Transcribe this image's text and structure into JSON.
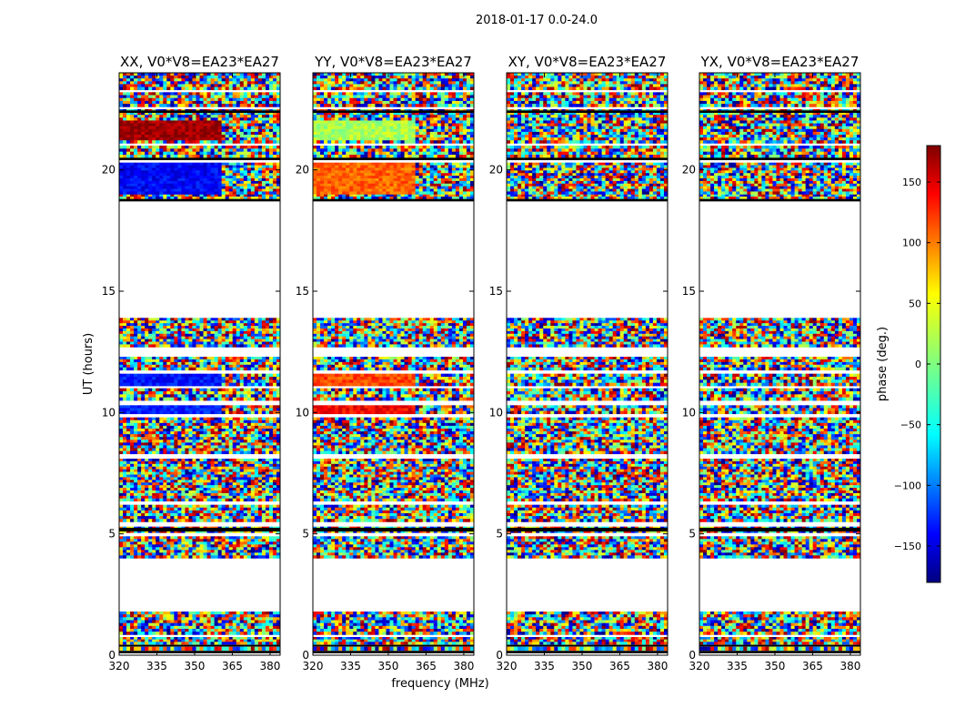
{
  "figure_title": "2018-01-17 0.0-24.0",
  "colors": {
    "background": "#ffffff",
    "frame": "#000000",
    "colormap": [
      "#00007f",
      "#0000ff",
      "#007fff",
      "#00ffff",
      "#7fff7f",
      "#ffff00",
      "#ff7f00",
      "#ff0000",
      "#7f0000"
    ]
  },
  "chart_data": [
    {
      "type": "heatmap",
      "title": "XX, V0*V8=EA23*EA27",
      "xlabel": "",
      "ylabel": "UT (hours)",
      "xlim": [
        320,
        384
      ],
      "ylim": [
        0,
        24
      ],
      "xticks": [
        320,
        335,
        350,
        365,
        380
      ],
      "yticks": [
        0,
        5,
        10,
        15,
        20
      ],
      "coherent_segments": [
        {
          "t0": 19.0,
          "t1": 20.3,
          "f0": 320,
          "f1": 361,
          "phase": -135
        },
        {
          "t0": 21.6,
          "t1": 22.4,
          "f0": 320,
          "f1": 360,
          "phase": 170
        },
        {
          "t0": 11.1,
          "t1": 11.6,
          "f0": 320,
          "f1": 361,
          "phase": -130
        },
        {
          "t0": 9.95,
          "t1": 10.3,
          "f0": 320,
          "f1": 361,
          "phase": -125
        }
      ]
    },
    {
      "type": "heatmap",
      "title": "YY, V0*V8=EA23*EA27",
      "xlabel": "",
      "ylabel": "",
      "xlim": [
        320,
        384
      ],
      "ylim": [
        0,
        24
      ],
      "xticks": [
        320,
        335,
        350,
        365,
        380
      ],
      "yticks": [
        0,
        5,
        10,
        15,
        20
      ],
      "coherent_segments": [
        {
          "t0": 19.0,
          "t1": 20.3,
          "f0": 320,
          "f1": 361,
          "phase": 100
        },
        {
          "t0": 21.6,
          "t1": 22.4,
          "f0": 320,
          "f1": 360,
          "phase": 15
        },
        {
          "t0": 11.1,
          "t1": 11.6,
          "f0": 320,
          "f1": 361,
          "phase": 110
        },
        {
          "t0": 9.95,
          "t1": 10.3,
          "f0": 320,
          "f1": 361,
          "phase": 135
        }
      ]
    },
    {
      "type": "heatmap",
      "title": "XY, V0*V8=EA23*EA27",
      "xlabel": "frequency (MHz)",
      "ylabel": "",
      "xlim": [
        320,
        384
      ],
      "ylim": [
        0,
        24
      ],
      "xticks": [
        320,
        335,
        350,
        365,
        380
      ],
      "yticks": [
        0,
        5,
        10,
        15,
        20
      ],
      "coherent_segments": []
    },
    {
      "type": "heatmap",
      "title": "YX, V0*V8=EA23*EA27",
      "xlabel": "",
      "ylabel": "",
      "xlim": [
        320,
        384
      ],
      "ylim": [
        0,
        24
      ],
      "xticks": [
        320,
        335,
        350,
        365,
        380
      ],
      "yticks": [
        0,
        5,
        10,
        15,
        20
      ],
      "coherent_segments": []
    }
  ],
  "observation": {
    "data_bands_hours": [
      [
        0.2,
        0.35
      ],
      [
        0.45,
        0.75
      ],
      [
        0.85,
        1.8
      ],
      [
        4.0,
        4.9
      ],
      [
        5.05,
        5.3
      ],
      [
        5.5,
        6.2
      ],
      [
        6.35,
        8.1
      ],
      [
        8.3,
        9.8
      ],
      [
        9.95,
        10.3
      ],
      [
        10.5,
        11.0
      ],
      [
        11.1,
        11.6
      ],
      [
        11.75,
        12.3
      ],
      [
        12.7,
        13.9
      ],
      [
        18.8,
        19.0
      ],
      [
        19.0,
        20.3
      ],
      [
        20.5,
        21.0
      ],
      [
        21.1,
        22.5
      ],
      [
        22.6,
        23.2
      ],
      [
        23.3,
        24.0
      ]
    ],
    "flagged_black_hours": [
      [
        0.08,
        0.18
      ],
      [
        0.38,
        0.43
      ],
      [
        5.1,
        5.25
      ],
      [
        18.7,
        18.8
      ],
      [
        20.4,
        20.5
      ],
      [
        22.35,
        22.45
      ]
    ]
  },
  "colorbar": {
    "label": "phase (deg.)",
    "range": [
      -180,
      180
    ],
    "ticks": [
      -150,
      -100,
      -50,
      0,
      50,
      100,
      150
    ]
  }
}
